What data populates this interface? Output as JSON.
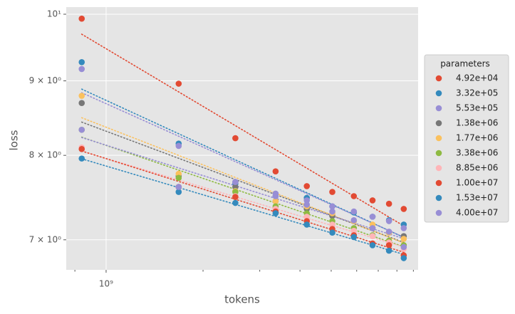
{
  "chart_data": {
    "type": "scatter",
    "x_label": "tokens",
    "y_label": "loss",
    "x": [
      840000000,
      1680000000,
      2520000000,
      3360000000,
      4200000000,
      5040000000,
      5880000000,
      6720000000,
      7560000000,
      8400000000
    ],
    "xlim": [
      752000000,
      9310000000
    ],
    "xscale": "log",
    "xticks": [
      {
        "value": 1000000000,
        "label": "10⁹"
      }
    ],
    "xminorticks": [
      800000000,
      2000000000,
      3000000000,
      4000000000,
      5000000000,
      6000000000,
      7000000000,
      8000000000,
      9000000000
    ],
    "ylim": [
      6.675,
      10.113
    ],
    "yscale": "log",
    "yticks": [
      {
        "value": 7,
        "label": "7 × 10⁰"
      },
      {
        "value": 8,
        "label": "8 × 10⁰"
      },
      {
        "value": 9,
        "label": "9 × 10⁰"
      },
      {
        "value": 10,
        "label": "10¹"
      }
    ],
    "grid": true,
    "trend_lines": true,
    "legend_title": "parameters",
    "legend": "right",
    "series": [
      {
        "name": "4.92e+04",
        "color": "#E24A33",
        "values": [
          9.93,
          8.96,
          8.22,
          7.8,
          7.62,
          7.55,
          7.5,
          7.45,
          7.41,
          7.35
        ]
      },
      {
        "name": "3.32e+05",
        "color": "#348ABD",
        "values": [
          9.27,
          8.15,
          7.65,
          7.5,
          7.48,
          7.38,
          7.31,
          7.26,
          7.22,
          7.17
        ]
      },
      {
        "name": "5.53e+05",
        "color": "#988ED5",
        "values": [
          9.17,
          8.12,
          7.67,
          7.53,
          7.45,
          7.38,
          7.32,
          7.26,
          7.21,
          7.13
        ]
      },
      {
        "name": "1.38e+06",
        "color": "#777777",
        "values": [
          8.69,
          7.74,
          7.61,
          7.44,
          7.35,
          7.27,
          7.21,
          7.13,
          7.08,
          7.04
        ]
      },
      {
        "name": "1.77e+06",
        "color": "#FBC15E",
        "values": [
          8.79,
          7.77,
          7.56,
          7.44,
          7.38,
          7.3,
          7.21,
          7.17,
          7.08,
          7.01
        ]
      },
      {
        "name": "3.38e+06",
        "color": "#8EBA42",
        "values": [
          8.33,
          7.72,
          7.55,
          7.38,
          7.3,
          7.21,
          7.13,
          7.05,
          6.99,
          6.94
        ]
      },
      {
        "name": "8.85e+06",
        "color": "#FFB5B8",
        "values": [
          8.1,
          7.61,
          7.5,
          7.35,
          7.26,
          7.17,
          7.1,
          7.04,
          6.97,
          6.9
        ]
      },
      {
        "name": "1.00e+07",
        "color": "#E24A33",
        "values": [
          8.08,
          7.61,
          7.49,
          7.32,
          7.21,
          7.12,
          7.05,
          6.96,
          6.94,
          6.83
        ]
      },
      {
        "name": "1.53e+07",
        "color": "#348ABD",
        "values": [
          7.96,
          7.55,
          7.42,
          7.3,
          7.17,
          7.08,
          7.03,
          6.94,
          6.88,
          6.8
        ]
      },
      {
        "name": "4.00e+07",
        "color": "#988ED5",
        "values": [
          8.33,
          7.61,
          7.67,
          7.5,
          7.4,
          7.32,
          7.22,
          7.13,
          7.09,
          6.92
        ]
      }
    ]
  }
}
